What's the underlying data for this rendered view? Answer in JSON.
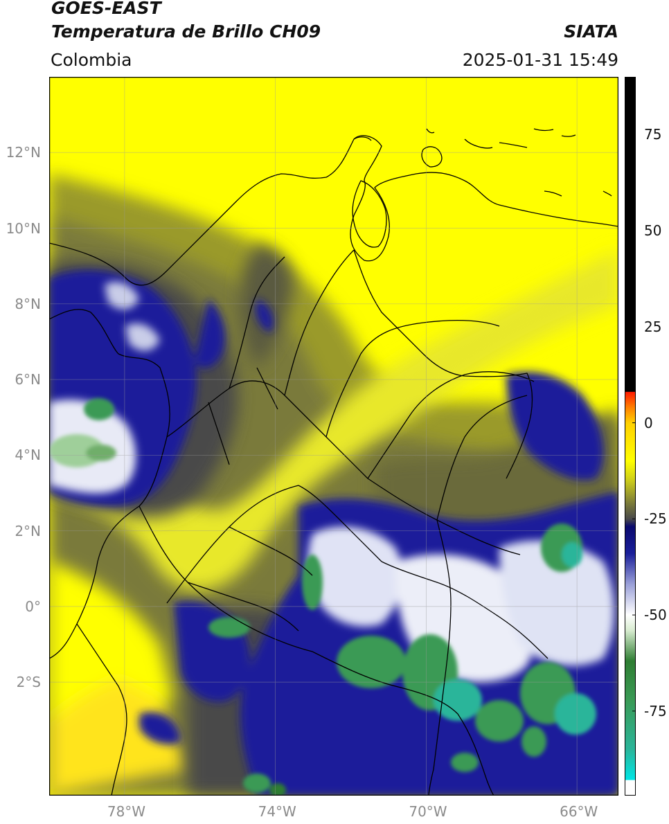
{
  "header": {
    "title_line1": "GOES-EAST",
    "title_line2": "Temperatura de Brillo CH09",
    "region": "Colombia",
    "source": "SIATA",
    "datetime": "2025-01-31 15:49"
  },
  "map": {
    "lon_range": [
      -80.0,
      -64.9
    ],
    "lat_range": [
      -5.0,
      14.0
    ],
    "lat_ticks": [
      {
        "value": 12,
        "label": "12°N"
      },
      {
        "value": 10,
        "label": "10°N"
      },
      {
        "value": 8,
        "label": "8°N"
      },
      {
        "value": 6,
        "label": "6°N"
      },
      {
        "value": 4,
        "label": "4°N"
      },
      {
        "value": 2,
        "label": "2°N"
      },
      {
        "value": 0,
        "label": "0°"
      },
      {
        "value": -2,
        "label": "2°S"
      }
    ],
    "lon_ticks": [
      {
        "value": -78,
        "label": "78°W"
      },
      {
        "value": -74,
        "label": "74°W"
      },
      {
        "value": -70,
        "label": "70°W"
      },
      {
        "value": -66,
        "label": "66°W"
      }
    ],
    "grid": true
  },
  "colorbar": {
    "range": [
      -97,
      90
    ],
    "ticks": [
      {
        "value": 75,
        "label": "75"
      },
      {
        "value": 50,
        "label": "50"
      },
      {
        "value": 25,
        "label": "25"
      },
      {
        "value": 0,
        "label": "0"
      },
      {
        "value": -25,
        "label": "-25"
      },
      {
        "value": -50,
        "label": "-50"
      },
      {
        "value": -75,
        "label": "-75"
      }
    ],
    "stops": [
      {
        "value": -97,
        "color": "#ffffff"
      },
      {
        "value": -93,
        "color": "#ffffff"
      },
      {
        "value": -92.9,
        "color": "#00e5e5"
      },
      {
        "value": -85,
        "color": "#2ab59a"
      },
      {
        "value": -72,
        "color": "#3a9a55"
      },
      {
        "value": -62,
        "color": "#2e7d32"
      },
      {
        "value": -54,
        "color": "#d8ecd0"
      },
      {
        "value": -50,
        "color": "#ffffff"
      },
      {
        "value": -42,
        "color": "#9aa0d8"
      },
      {
        "value": -34,
        "color": "#1a1f9a"
      },
      {
        "value": -27,
        "color": "#0a0a6e"
      },
      {
        "value": -25,
        "color": "#4a4a4a"
      },
      {
        "value": -21,
        "color": "#7a7a3a"
      },
      {
        "value": -15,
        "color": "#cccc1a"
      },
      {
        "value": -10,
        "color": "#ffff00"
      },
      {
        "value": 0,
        "color": "#ffd000"
      },
      {
        "value": 4,
        "color": "#ff8000"
      },
      {
        "value": 8,
        "color": "#ff1a00"
      },
      {
        "value": 8.1,
        "color": "#000000"
      },
      {
        "value": 90,
        "color": "#000000"
      }
    ]
  },
  "colors": {
    "yellow": "#ffff00",
    "olive": "#7a7a3a",
    "gray": "#4a4a4a",
    "navy": "#1a1f9a",
    "white": "#ffffff",
    "green": "#3a9a55",
    "teal": "#2ab59a",
    "border": "#000000"
  }
}
